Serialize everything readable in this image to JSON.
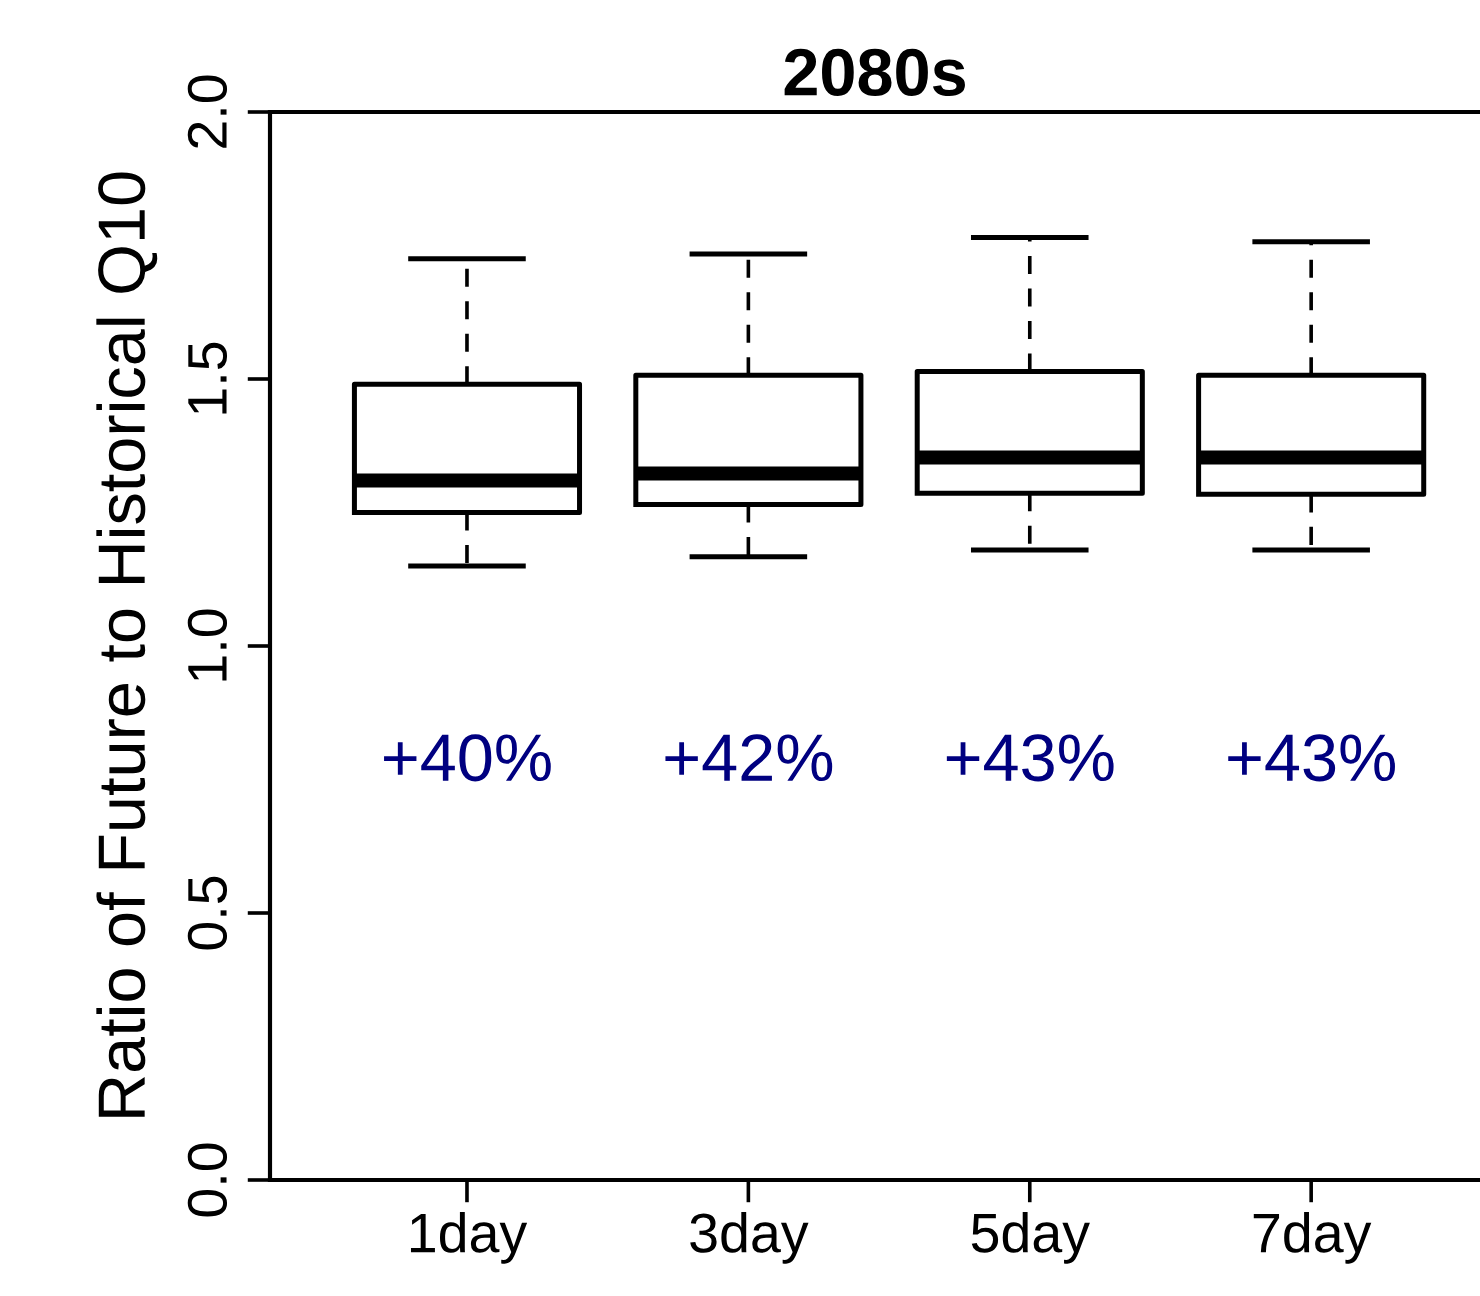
{
  "chart_data": {
    "type": "box",
    "title": "2080s",
    "ylabel": "Ratio of Future to Historical Q10",
    "categories": [
      "1day",
      "3day",
      "5day",
      "7day"
    ],
    "boxes": [
      {
        "low": 1.15,
        "q1": 1.25,
        "median": 1.31,
        "q3": 1.49,
        "high": 1.725
      },
      {
        "low": 1.167,
        "q1": 1.265,
        "median": 1.323,
        "q3": 1.507,
        "high": 1.734
      },
      {
        "low": 1.18,
        "q1": 1.286,
        "median": 1.353,
        "q3": 1.514,
        "high": 1.765
      },
      {
        "low": 1.18,
        "q1": 1.284,
        "median": 1.353,
        "q3": 1.507,
        "high": 1.757
      }
    ],
    "ylim": [
      0,
      2
    ],
    "yticks": [
      {
        "value": 0,
        "label": "0.0"
      },
      {
        "value": 0.5,
        "label": "0.5"
      },
      {
        "value": 1,
        "label": "1.0"
      },
      {
        "value": 1.5,
        "label": "1.5"
      },
      {
        "value": 2,
        "label": "2.0"
      }
    ],
    "color": "#000000",
    "grid": false,
    "annotations": [
      "+40%",
      "+42%",
      "+43%",
      "+43%"
    ]
  }
}
